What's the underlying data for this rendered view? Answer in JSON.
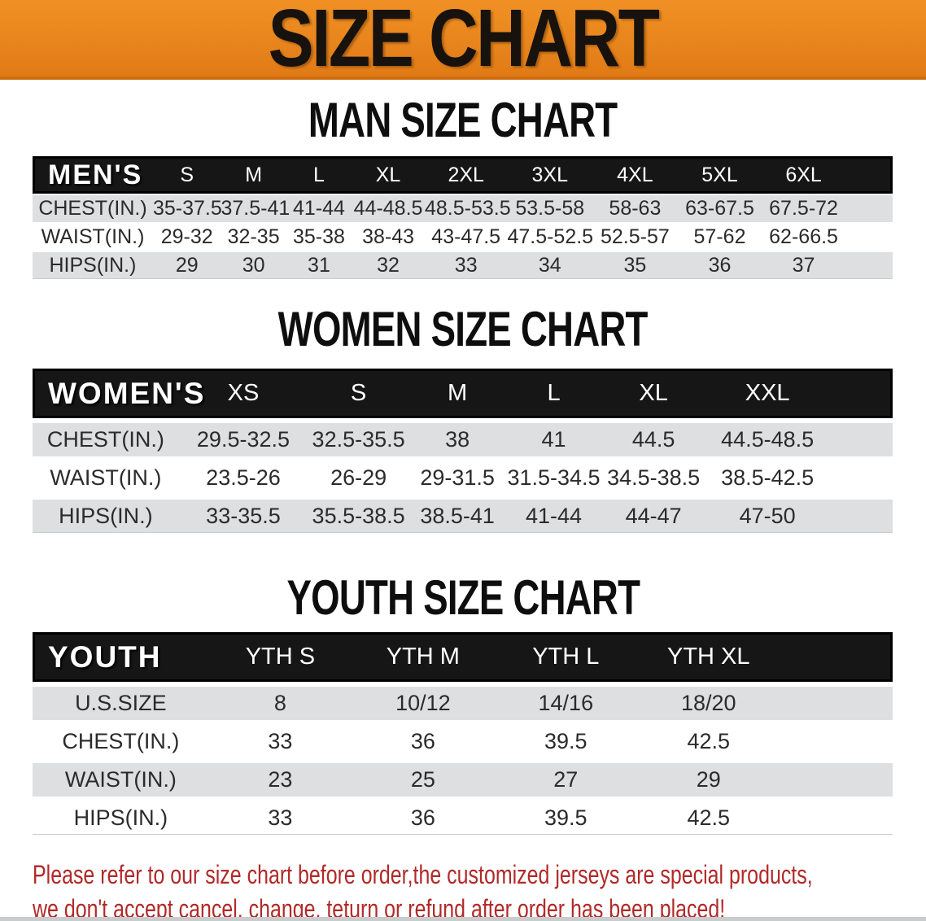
{
  "banner": {
    "title": "SIZE CHART"
  },
  "colors": {
    "banner_orange": "#E8851D",
    "header_black": "#161616",
    "row_gray": "#DEDFE0",
    "notice_red": "#B02A28"
  },
  "sections": [
    {
      "id": "men",
      "title": "MAN SIZE CHART",
      "header_label": "MEN'S",
      "columns": [
        "S",
        "M",
        "L",
        "XL",
        "2XL",
        "3XL",
        "4XL",
        "5XL",
        "6XL"
      ],
      "rows": [
        {
          "label": "CHEST(IN.)",
          "values": [
            "35-37.5",
            "37.5-41",
            "41-44",
            "44-48.5",
            "48.5-53.5",
            "53.5-58",
            "58-63",
            "63-67.5",
            "67.5-72"
          ]
        },
        {
          "label": "WAIST(IN.)",
          "values": [
            "29-32",
            "32-35",
            "35-38",
            "38-43",
            "43-47.5",
            "47.5-52.5",
            "52.5-57",
            "57-62",
            "62-66.5"
          ]
        },
        {
          "label": "HIPS(IN.)",
          "values": [
            "29",
            "30",
            "31",
            "32",
            "33",
            "34",
            "35",
            "36",
            "37"
          ]
        }
      ]
    },
    {
      "id": "women",
      "title": "WOMEN SIZE CHART",
      "header_label": "WOMEN'S",
      "columns": [
        "XS",
        "S",
        "M",
        "L",
        "XL",
        "XXL"
      ],
      "rows": [
        {
          "label": "CHEST(IN.)",
          "values": [
            "29.5-32.5",
            "32.5-35.5",
            "38",
            "41",
            "44.5",
            "44.5-48.5"
          ]
        },
        {
          "label": "WAIST(IN.)",
          "values": [
            "23.5-26",
            "26-29",
            "29-31.5",
            "31.5-34.5",
            "34.5-38.5",
            "38.5-42.5"
          ]
        },
        {
          "label": "HIPS(IN.)",
          "values": [
            "33-35.5",
            "35.5-38.5",
            "38.5-41",
            "41-44",
            "44-47",
            "47-50"
          ]
        }
      ]
    },
    {
      "id": "youth",
      "title": "YOUTH SIZE CHART",
      "header_label": "YOUTH",
      "columns": [
        "YTH S",
        "YTH M",
        "YTH L",
        "YTH XL"
      ],
      "rows": [
        {
          "label": "U.S.SIZE",
          "values": [
            "8",
            "10/12",
            "14/16",
            "18/20"
          ]
        },
        {
          "label": "CHEST(IN.)",
          "values": [
            "33",
            "36",
            "39.5",
            "42.5"
          ]
        },
        {
          "label": "WAIST(IN.)",
          "values": [
            "23",
            "25",
            "27",
            "29"
          ]
        },
        {
          "label": "HIPS(IN.)",
          "values": [
            "33",
            "36",
            "39.5",
            "42.5"
          ]
        }
      ]
    }
  ],
  "notice": {
    "line1": "Please refer to our size chart before order,the customized jerseys are special products,",
    "line2": "we don't accept cancel, change, teturn or refund after order has been placed!"
  }
}
